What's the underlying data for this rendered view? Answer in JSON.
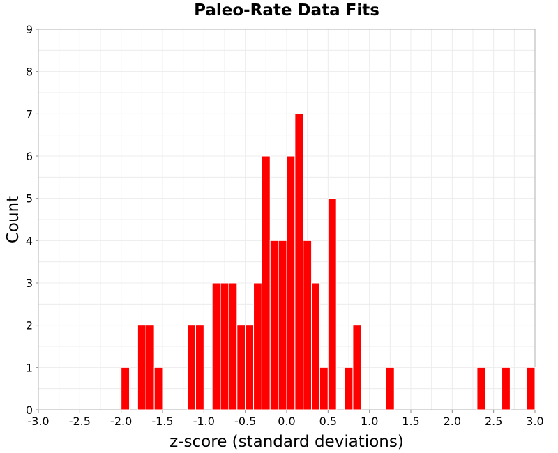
{
  "chart_data": {
    "type": "bar",
    "title": "Paleo-Rate Data Fits",
    "xlabel": "z-score (standard deviations)",
    "ylabel": "Count",
    "xlim": [
      -3.0,
      3.0
    ],
    "ylim": [
      0,
      9
    ],
    "bin_width": 0.1,
    "x_ticks": [
      "-3.0",
      "-2.5",
      "-2.0",
      "-1.5",
      "-1.0",
      "-0.5",
      "0.0",
      "0.5",
      "1.0",
      "1.5",
      "2.0",
      "2.5",
      "3.0"
    ],
    "y_ticks": [
      "0",
      "1",
      "2",
      "3",
      "4",
      "5",
      "6",
      "7",
      "8",
      "9"
    ],
    "grid": true,
    "bar_color": "#ff0000",
    "bars": [
      {
        "x": -1.95,
        "value": 1
      },
      {
        "x": -1.75,
        "value": 2
      },
      {
        "x": -1.65,
        "value": 2
      },
      {
        "x": -1.55,
        "value": 1
      },
      {
        "x": -1.15,
        "value": 2
      },
      {
        "x": -1.05,
        "value": 2
      },
      {
        "x": -0.85,
        "value": 3
      },
      {
        "x": -0.75,
        "value": 3
      },
      {
        "x": -0.65,
        "value": 3
      },
      {
        "x": -0.55,
        "value": 2
      },
      {
        "x": -0.45,
        "value": 2
      },
      {
        "x": -0.35,
        "value": 3
      },
      {
        "x": -0.25,
        "value": 6
      },
      {
        "x": -0.15,
        "value": 4
      },
      {
        "x": -0.05,
        "value": 4
      },
      {
        "x": 0.05,
        "value": 6
      },
      {
        "x": 0.15,
        "value": 7
      },
      {
        "x": 0.25,
        "value": 4
      },
      {
        "x": 0.35,
        "value": 3
      },
      {
        "x": 0.45,
        "value": 1
      },
      {
        "x": 0.55,
        "value": 5
      },
      {
        "x": 0.75,
        "value": 1
      },
      {
        "x": 0.85,
        "value": 2
      },
      {
        "x": 1.25,
        "value": 1
      },
      {
        "x": 2.35,
        "value": 1
      },
      {
        "x": 2.65,
        "value": 1
      },
      {
        "x": 2.95,
        "value": 1
      }
    ]
  }
}
